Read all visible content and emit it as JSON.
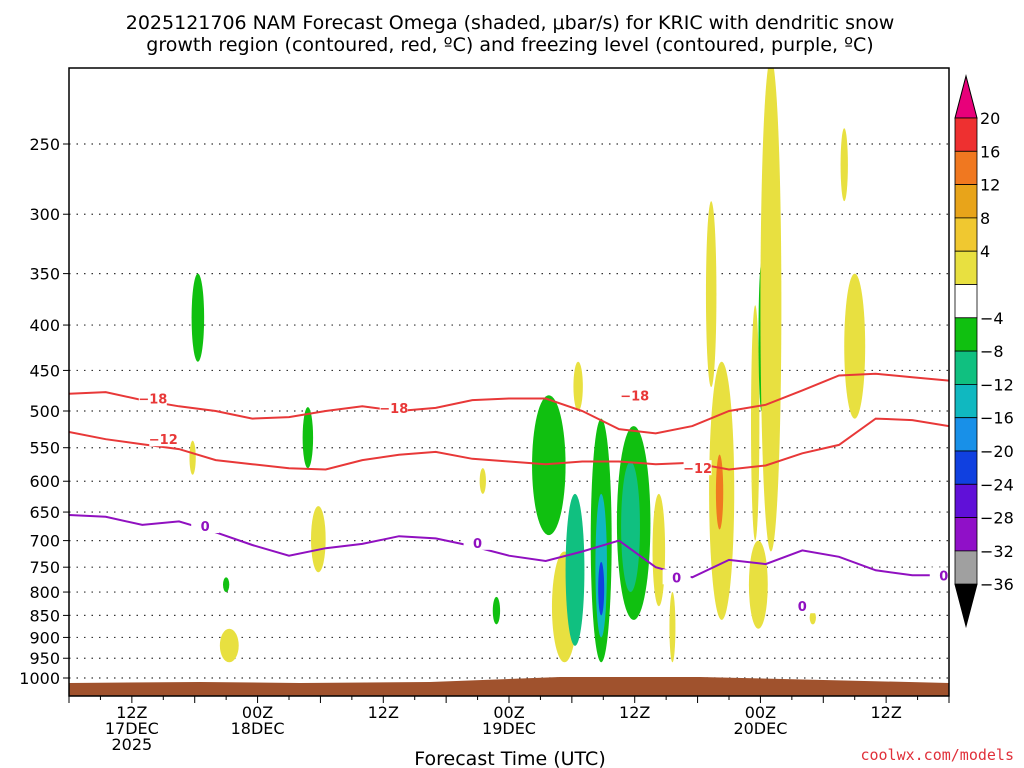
{
  "chart_data": {
    "type": "heatmap",
    "title_line1": "2025121706 NAM Forecast Omega (shaded, μbar/s) for KRIC with dendritic snow",
    "title_line2": "growth region (contoured, red, ºC) and freezing level (contoured, purple, ºC)",
    "xlabel": "Forecast Time (UTC)",
    "credit": "coolwx.com/models",
    "x_hours_range": [
      0,
      84
    ],
    "x_ticks": [
      {
        "hour": 6,
        "lines": [
          "12Z",
          "17DEC",
          "2025"
        ]
      },
      {
        "hour": 18,
        "lines": [
          "00Z",
          "18DEC"
        ]
      },
      {
        "hour": 30,
        "lines": [
          "12Z"
        ]
      },
      {
        "hour": 42,
        "lines": [
          "00Z",
          "19DEC"
        ]
      },
      {
        "hour": 54,
        "lines": [
          "12Z"
        ]
      },
      {
        "hour": 66,
        "lines": [
          "00Z",
          "20DEC"
        ]
      },
      {
        "hour": 78,
        "lines": [
          "12Z"
        ]
      }
    ],
    "y_ticks": [
      "250",
      "300",
      "350",
      "400",
      "450",
      "500",
      "550",
      "600",
      "650",
      "700",
      "750",
      "800",
      "850",
      "900",
      "950",
      "1000"
    ],
    "y_range_hPa": [
      200,
      1010
    ],
    "colorbar": {
      "labels": [
        "20",
        "16",
        "12",
        "8",
        "4",
        "−4",
        "−8",
        "−12",
        "−16",
        "−20",
        "−24",
        "−28",
        "−32",
        "−36"
      ],
      "colors": [
        "#e8007a",
        "#ee3030",
        "#f07820",
        "#e8a41a",
        "#f0c830",
        "#e8e040",
        "#ffffff",
        "#10c010",
        "#10c080",
        "#10b8c0",
        "#1890e8",
        "#1040e0",
        "#6010d8",
        "#9010c8",
        "#a0a0a0",
        "#000000"
      ]
    },
    "contours": {
      "dgz_minus18_hPa": [
        478,
        476,
        486,
        494,
        500,
        510,
        508,
        500,
        494,
        500,
        496,
        486,
        484,
        484,
        500,
        524,
        530,
        520,
        500,
        492,
        474,
        456,
        454,
        458,
        462
      ],
      "dgz_minus12_hPa": [
        528,
        538,
        545,
        552,
        568,
        574,
        580,
        582,
        568,
        560,
        556,
        566,
        570,
        574,
        570,
        570,
        574,
        572,
        582,
        576,
        558,
        546,
        510,
        512,
        520
      ],
      "freezing_level_hPa": [
        655,
        658,
        672,
        666,
        685,
        708,
        728,
        714,
        706,
        692,
        696,
        710,
        728,
        738,
        720,
        700,
        750,
        770,
        736,
        744,
        718,
        730,
        756,
        766,
        766
      ],
      "labels": [
        {
          "text": "−18",
          "hour": 8,
          "hPa": 484,
          "color": "#e83838"
        },
        {
          "text": "−18",
          "hour": 31,
          "hPa": 496,
          "color": "#e83838"
        },
        {
          "text": "−18",
          "hour": 54,
          "hPa": 480,
          "color": "#e83838"
        },
        {
          "text": "−12",
          "hour": 9,
          "hPa": 538,
          "color": "#e83838"
        },
        {
          "text": "−12",
          "hour": 60,
          "hPa": 580,
          "color": "#e83838"
        },
        {
          "text": "0",
          "hour": 13,
          "hPa": 674,
          "color": "#9010c0"
        },
        {
          "text": "0",
          "hour": 39,
          "hPa": 704,
          "color": "#9010c0"
        },
        {
          "text": "0",
          "hour": 58,
          "hPa": 770,
          "color": "#9010c0"
        },
        {
          "text": "0",
          "hour": 70,
          "hPa": 830,
          "color": "#9010c0"
        },
        {
          "text": "0",
          "hour": 83.5,
          "hPa": 766,
          "color": "#9010c0"
        }
      ]
    }
  }
}
